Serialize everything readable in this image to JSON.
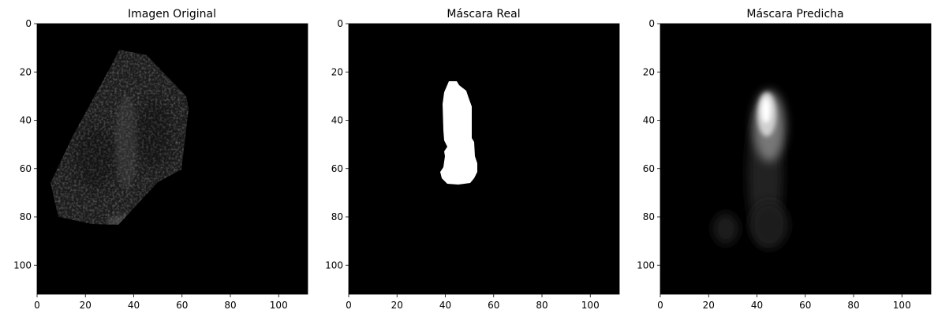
{
  "panels": [
    {
      "title": "Imagen Original",
      "image": "echocardiogram-ultrasound",
      "xticks": [
        "0",
        "20",
        "40",
        "60",
        "80",
        "100"
      ],
      "yticks": [
        "0",
        "20",
        "40",
        "60",
        "80",
        "100"
      ],
      "xlim": [
        0,
        112
      ],
      "ylim": [
        112,
        0
      ]
    },
    {
      "title": "Máscara Real",
      "image": "binary-segmentation-mask",
      "xticks": [
        "0",
        "20",
        "40",
        "60",
        "80",
        "100"
      ],
      "yticks": [
        "0",
        "20",
        "40",
        "60",
        "80",
        "100"
      ],
      "xlim": [
        0,
        112
      ],
      "ylim": [
        112,
        0
      ]
    },
    {
      "title": "Máscara Predicha",
      "image": "predicted-probability-mask",
      "xticks": [
        "0",
        "20",
        "40",
        "60",
        "80",
        "100"
      ],
      "yticks": [
        "0",
        "20",
        "40",
        "60",
        "80",
        "100"
      ],
      "xlim": [
        0,
        112
      ],
      "ylim": [
        112,
        0
      ]
    }
  ],
  "colors": {
    "background": "#ffffff",
    "image_bg": "#000000",
    "axis": "#000000"
  }
}
